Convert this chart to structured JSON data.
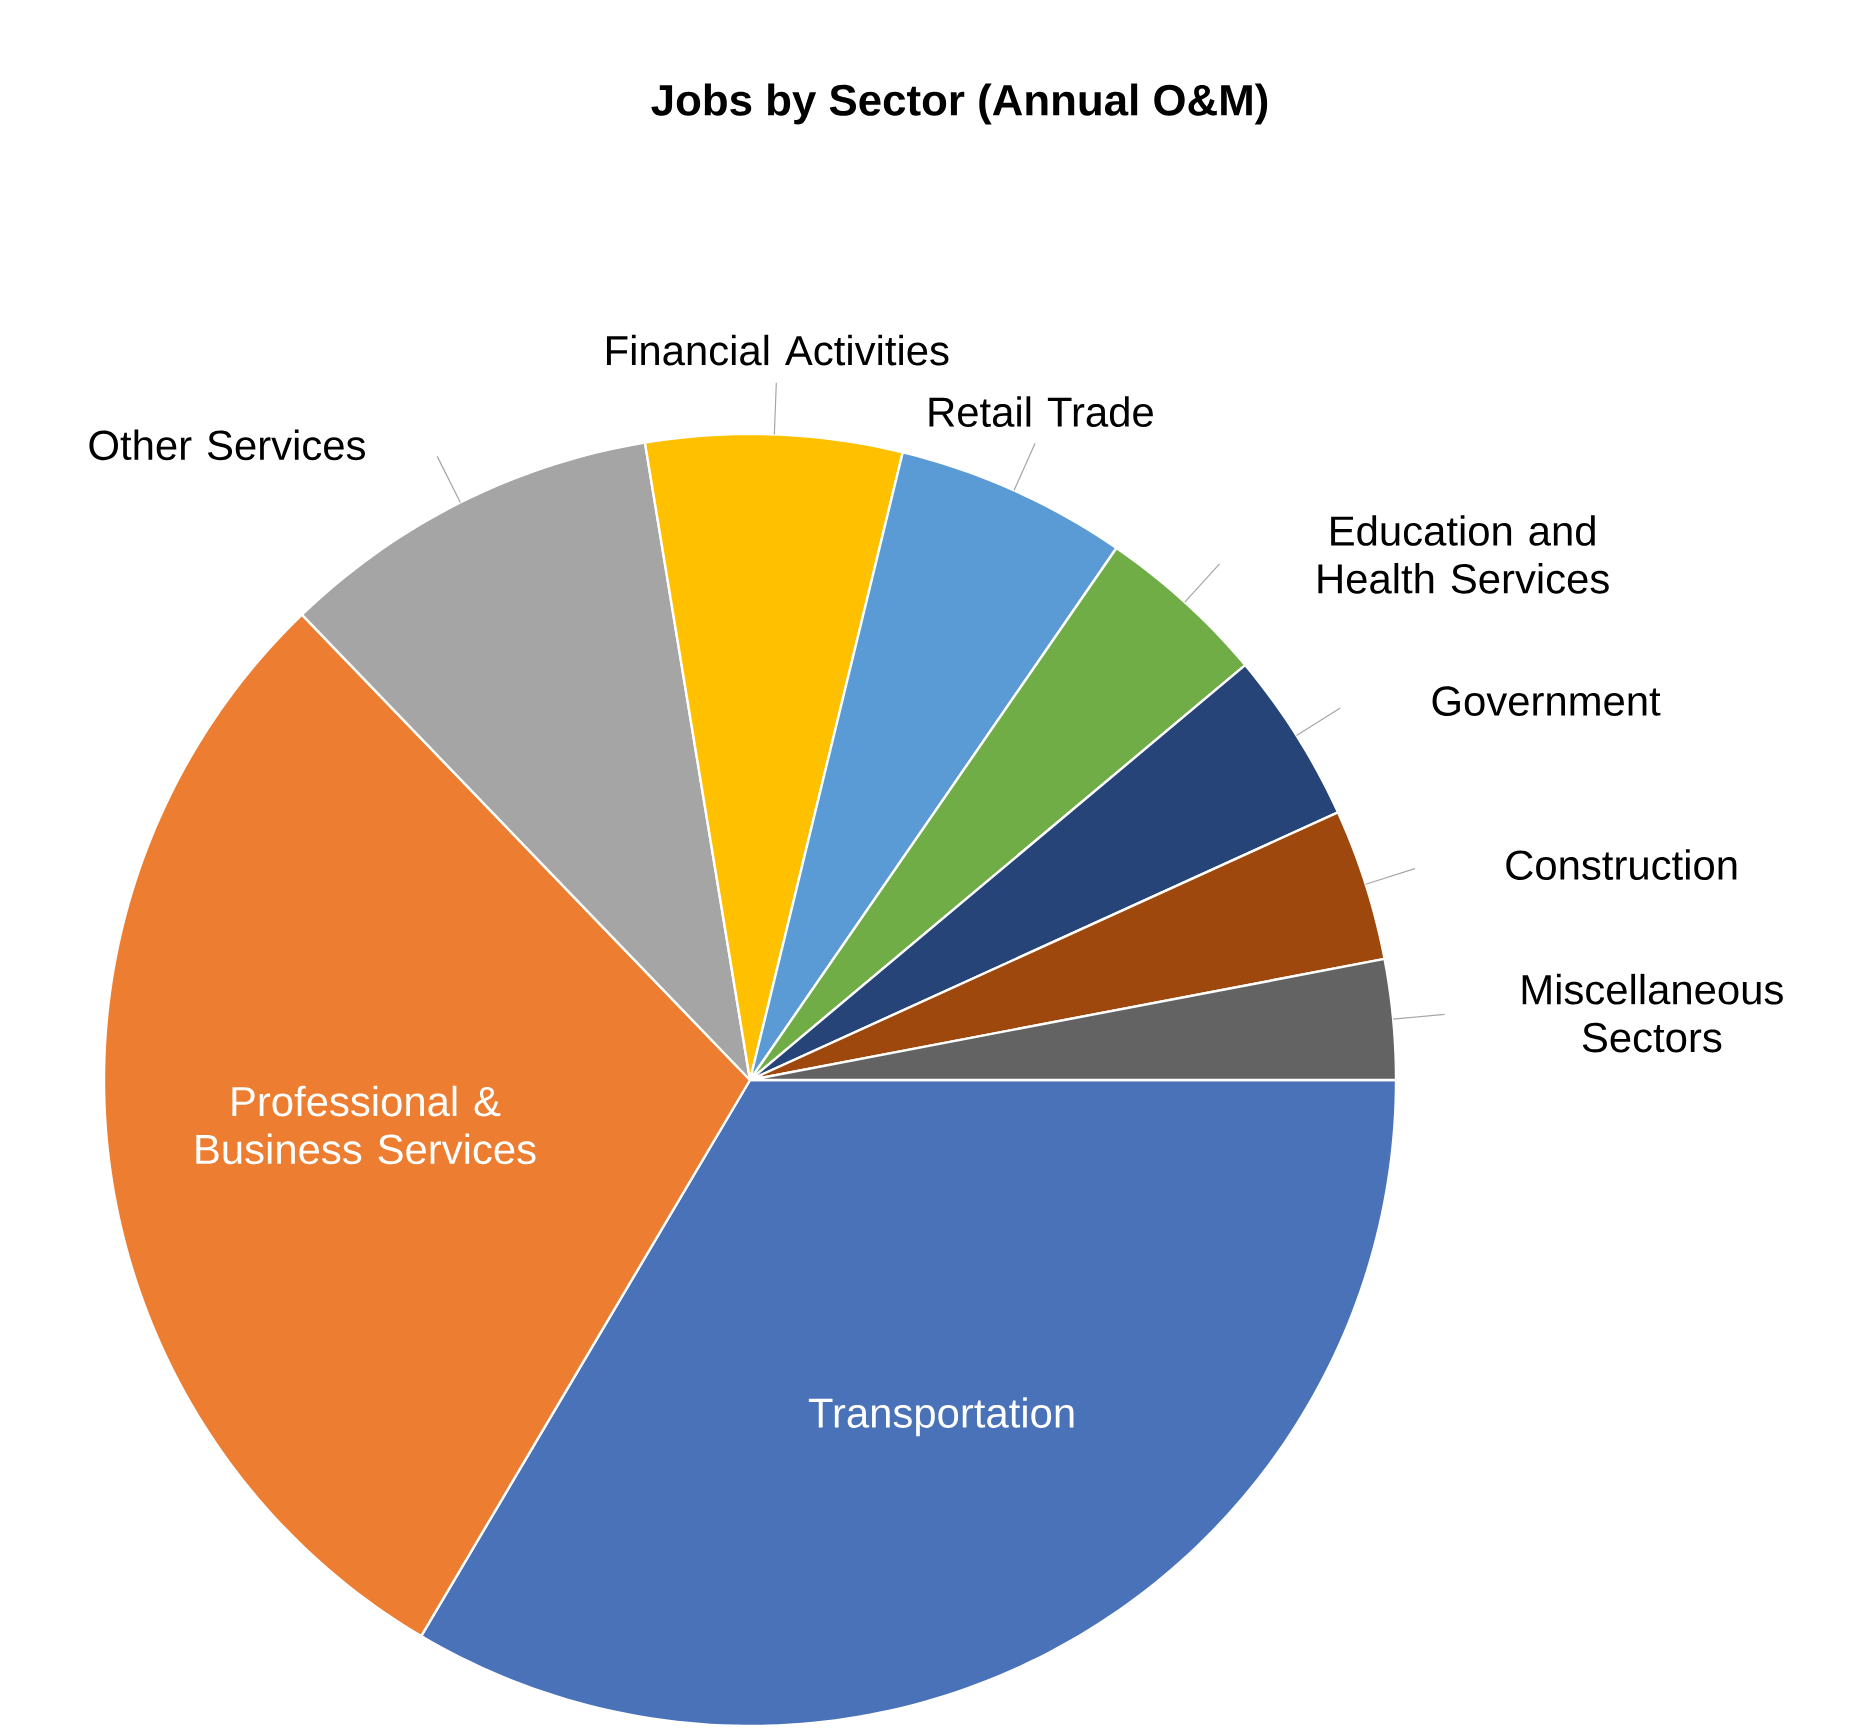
{
  "chart_data": {
    "type": "pie",
    "title": "Jobs by Sector (Annual O&M)",
    "categories": [
      "Transportation",
      "Professional & Business Services",
      "Other Services",
      "Financial Activities",
      "Retail Trade",
      "Education and Health Services",
      "Government",
      "Construction",
      "Miscellaneous Sectors"
    ],
    "values": [
      33.5,
      29.3,
      9.6,
      6.4,
      5.8,
      4.3,
      4.3,
      3.8,
      3.0
    ],
    "colors": [
      "#4a72b8",
      "#ed7d31",
      "#a5a5a5",
      "#ffc000",
      "#5b9bd5",
      "#70ad47",
      "#264478",
      "#9e480e",
      "#636363"
    ]
  }
}
